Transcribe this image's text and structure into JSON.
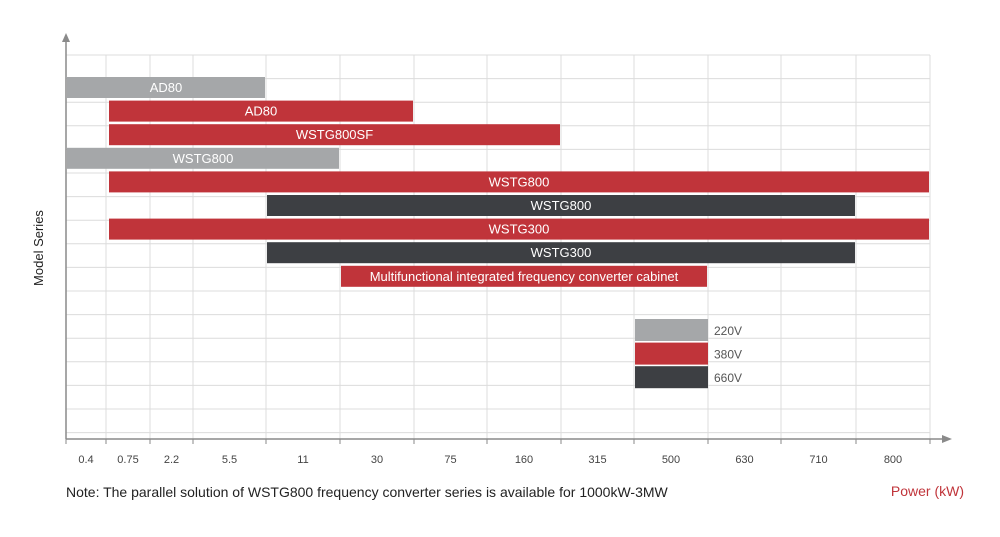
{
  "colors": {
    "220V": "#a5a7a9",
    "380V": "#c0343a",
    "660V": "#3d3f43",
    "grid": "#dcdcdc",
    "axis": "#8a8a8a",
    "xlabel": "#c0343a"
  },
  "chart_data": {
    "type": "gantt-bar",
    "title": "",
    "ylabel": "Model Series",
    "xlabel": "Power (kW)",
    "x_categories": [
      "0.4",
      "0.75",
      "2.2",
      "5.5",
      "11",
      "30",
      "75",
      "160",
      "315",
      "500",
      "630",
      "710",
      "800"
    ],
    "bars": [
      {
        "label": "AD80",
        "voltage": "220V",
        "start": "0.4",
        "end": "5.5",
        "row": 0
      },
      {
        "label": "AD80",
        "voltage": "380V",
        "start": "0.75",
        "end": "30",
        "row": 1
      },
      {
        "label": "WSTG800SF",
        "voltage": "380V",
        "start": "0.75",
        "end": "160",
        "row": 2
      },
      {
        "label": "WSTG800",
        "voltage": "220V",
        "start": "0.4",
        "end": "11",
        "row": 3
      },
      {
        "label": "WSTG800",
        "voltage": "380V",
        "start": "0.75",
        "end": "800",
        "row": 4
      },
      {
        "label": "WSTG800",
        "voltage": "660V",
        "start": "11",
        "end": "710",
        "row": 5
      },
      {
        "label": "WSTG300",
        "voltage": "380V",
        "start": "0.75",
        "end": "800",
        "row": 6
      },
      {
        "label": "WSTG300",
        "voltage": "660V",
        "start": "11",
        "end": "710",
        "row": 7
      },
      {
        "label": "Multifunctional integrated frequency converter cabinet",
        "voltage": "380V",
        "start": "30",
        "end": "500",
        "row": 8
      }
    ],
    "legend": [
      {
        "label": "220V",
        "voltage": "220V"
      },
      {
        "label": "380V",
        "voltage": "380V"
      },
      {
        "label": "660V",
        "voltage": "660V"
      }
    ]
  },
  "note": "Note: The parallel solution of WSTG800 frequency converter series is available for 1000kW-3MW"
}
